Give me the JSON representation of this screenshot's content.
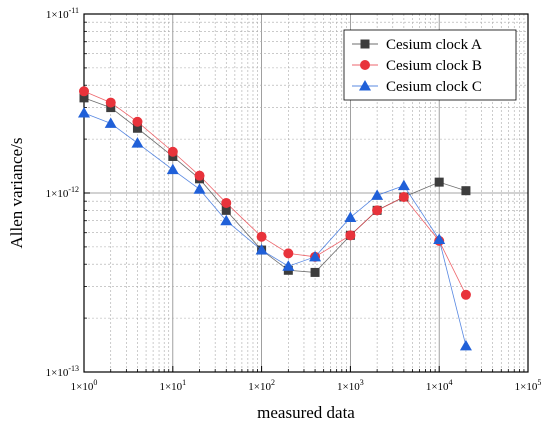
{
  "chart_data": {
    "type": "line",
    "x_scale": "log",
    "y_scale": "log",
    "xlabel": "measured data",
    "ylabel": "Allen variance/s",
    "xlim": [
      1,
      100000
    ],
    "ylim": [
      1e-13,
      1e-11
    ],
    "grid": true,
    "legend_position": "top-right",
    "x_tick_labels": [
      {
        "base": "1×10",
        "exp": "0"
      },
      {
        "base": "1×10",
        "exp": "1"
      },
      {
        "base": "1×10",
        "exp": "2"
      },
      {
        "base": "1×10",
        "exp": "3"
      },
      {
        "base": "1×10",
        "exp": "4"
      },
      {
        "base": "1×10",
        "exp": "5"
      }
    ],
    "y_tick_labels": [
      {
        "base": "1×10",
        "exp": "-13"
      },
      {
        "base": "1×10",
        "exp": "-12"
      },
      {
        "base": "1×10",
        "exp": "-11"
      }
    ],
    "series": [
      {
        "name": "Cesium clock A",
        "color": "#3d3d3d",
        "marker": "square",
        "x": [
          1,
          2,
          4,
          10,
          20,
          40,
          100,
          200,
          400,
          1000,
          2000,
          4000,
          10000,
          20000
        ],
        "y": [
          3.4e-12,
          3e-12,
          2.3e-12,
          1.6e-12,
          1.2e-12,
          8e-13,
          4.8e-13,
          3.7e-13,
          3.6e-13,
          5.8e-13,
          8e-13,
          9.5e-13,
          1.15e-12,
          1.03e-12
        ]
      },
      {
        "name": "Cesium clock B",
        "color": "#e8333b",
        "marker": "circle",
        "x": [
          1,
          2,
          4,
          10,
          20,
          40,
          100,
          200,
          400,
          1000,
          2000,
          4000,
          10000,
          20000
        ],
        "y": [
          3.7e-12,
          3.2e-12,
          2.5e-12,
          1.7e-12,
          1.25e-12,
          8.8e-13,
          5.7e-13,
          4.6e-13,
          4.4e-13,
          5.8e-13,
          8e-13,
          9.5e-13,
          5.4e-13,
          2.7e-13
        ]
      },
      {
        "name": "Cesium clock C",
        "color": "#2060d8",
        "marker": "triangle",
        "x": [
          1,
          2,
          4,
          10,
          20,
          40,
          100,
          200,
          400,
          1000,
          2000,
          4000,
          10000,
          20000
        ],
        "y": [
          2.8e-12,
          2.45e-12,
          1.9e-12,
          1.35e-12,
          1.05e-12,
          7e-13,
          4.8e-13,
          3.9e-13,
          4.4e-13,
          7.3e-13,
          9.7e-13,
          1.1e-12,
          5.5e-13,
          1.4e-13
        ]
      }
    ]
  }
}
